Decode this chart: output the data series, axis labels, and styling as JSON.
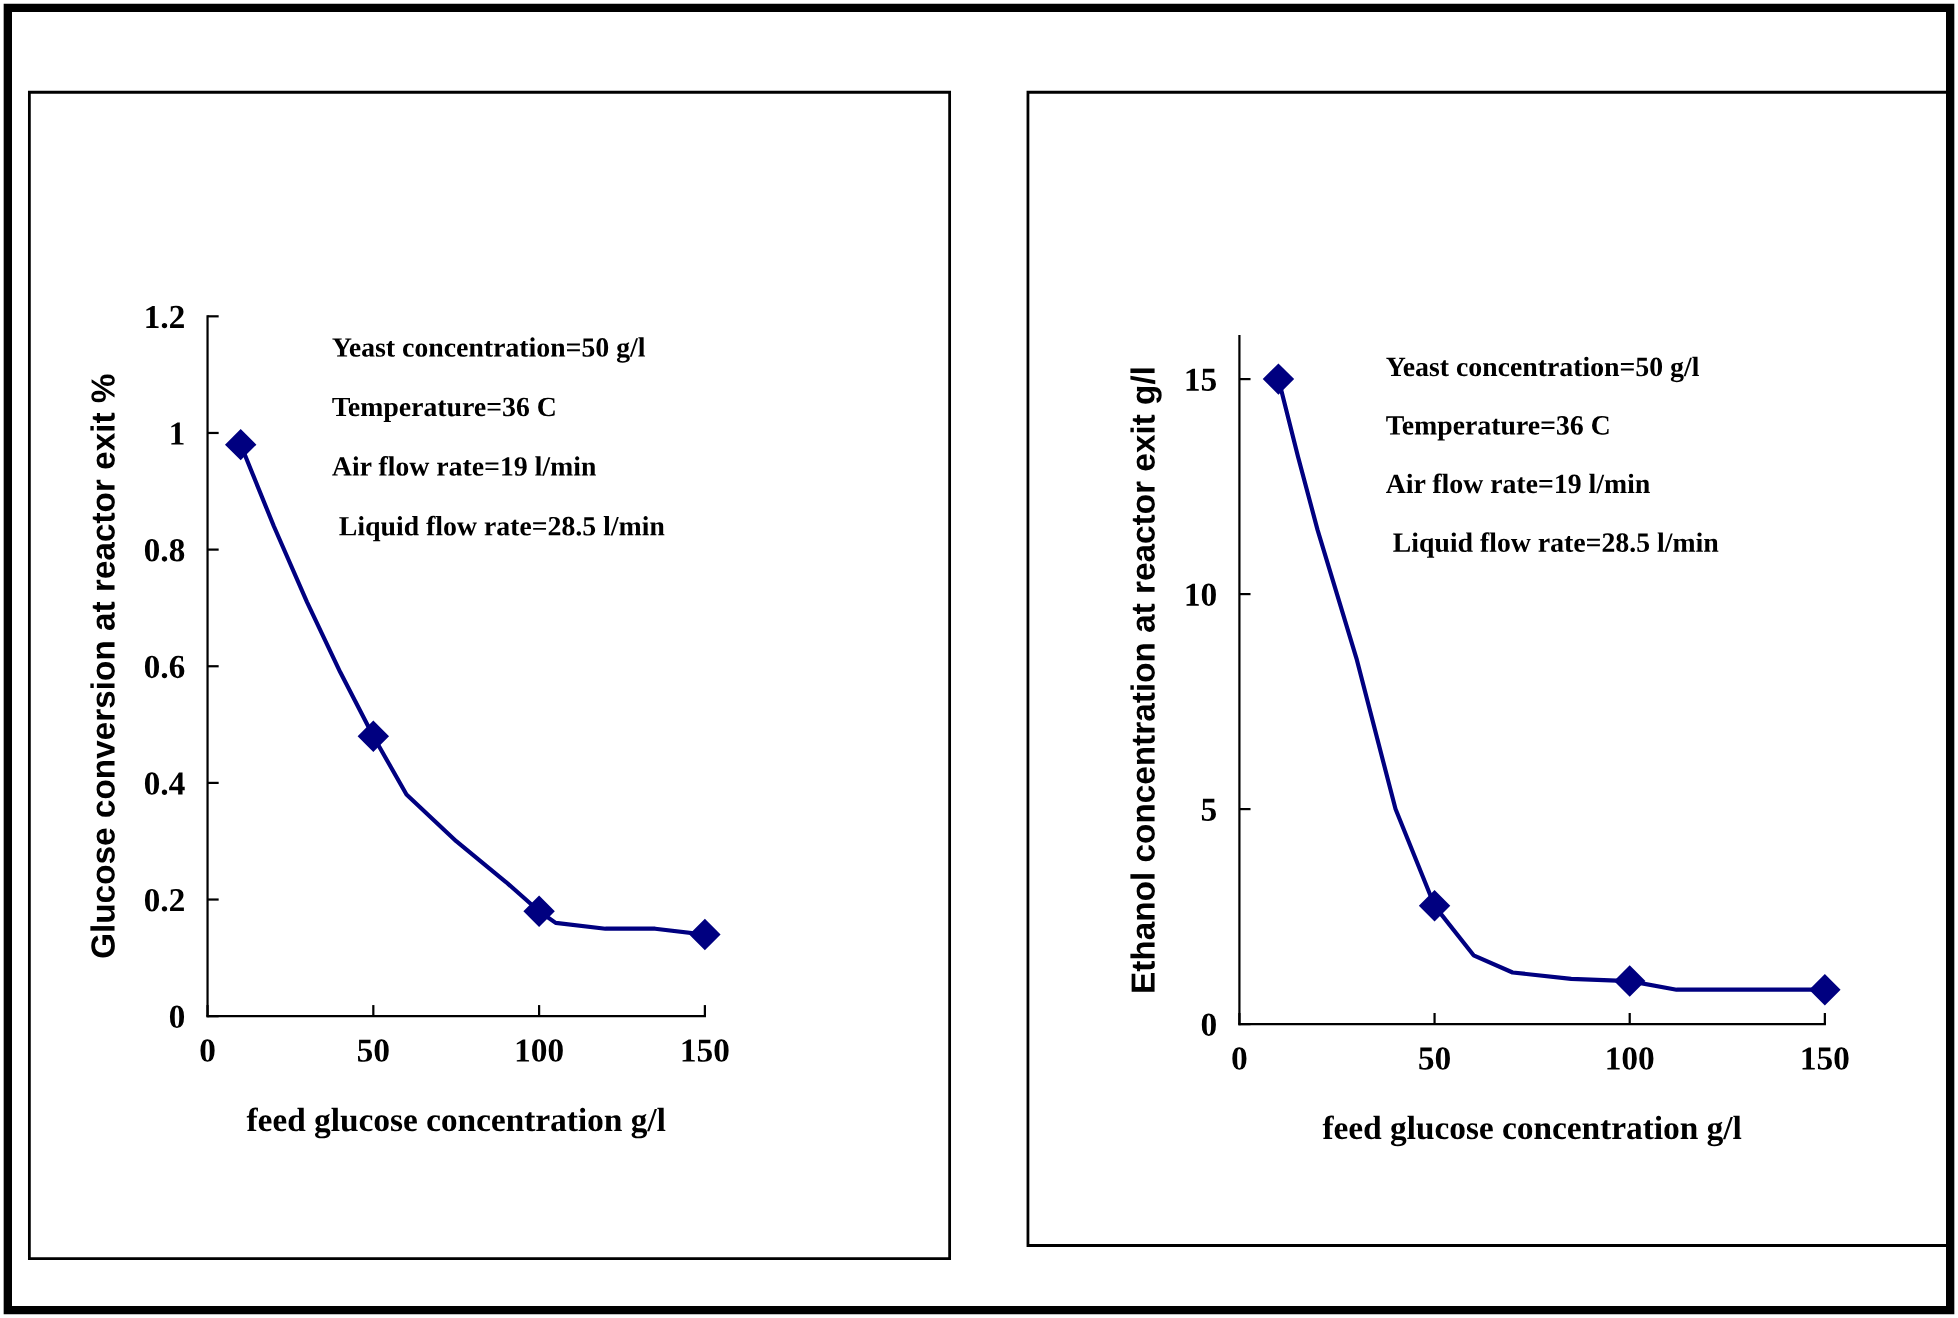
{
  "chart_data": [
    {
      "type": "line",
      "xlabel": "feed glucose concentration g/l",
      "ylabel": "Glucose conversion at reactor exit %",
      "series": [
        {
          "color": "#000080",
          "marker": "none",
          "x": [
            10,
            20,
            30,
            40,
            50,
            60,
            75,
            90,
            100,
            105,
            120,
            135,
            150
          ],
          "values": [
            0.98,
            0.84,
            0.71,
            0.59,
            0.48,
            0.38,
            0.3,
            0.23,
            0.18,
            0.16,
            0.15,
            0.15,
            0.14
          ]
        },
        {
          "type": "scatter",
          "color": "#000080",
          "marker": "diamond",
          "x": [
            10,
            50,
            100,
            150
          ],
          "values": [
            0.98,
            0.48,
            0.18,
            0.14
          ]
        }
      ],
      "xlim": [
        0,
        150
      ],
      "ylim": [
        0,
        1.2
      ],
      "xticks": [
        0,
        50,
        100,
        150
      ],
      "yticks": [
        0,
        0.2,
        0.4,
        0.6,
        0.8,
        1,
        1.2
      ],
      "line_style": "solid",
      "annotations": [
        "Yeast concentration=50 g/l",
        "Temperature=36 C",
        "Air flow rate=19 l/min",
        " Liquid flow rate=28.5 l/min"
      ]
    },
    {
      "type": "line",
      "xlabel": "feed glucose concentration g/l",
      "ylabel": "Ethanol concentration at reactor exit g/l",
      "series": [
        {
          "color": "#000080",
          "marker": "none",
          "x": [
            10,
            15,
            20,
            25,
            30,
            40,
            50,
            60,
            70,
            85,
            100,
            112,
            150
          ],
          "values": [
            15,
            13.2,
            11.5,
            10,
            8.5,
            5,
            2.75,
            1.6,
            1.2,
            1.05,
            1.0,
            0.8,
            0.8
          ]
        },
        {
          "type": "scatter",
          "color": "#000080",
          "marker": "diamond",
          "x": [
            10,
            50,
            100,
            150
          ],
          "values": [
            15,
            2.75,
            1.0,
            0.8
          ]
        }
      ],
      "xlim": [
        0,
        150
      ],
      "ylim": [
        0,
        16
      ],
      "xticks": [
        0,
        50,
        100,
        150
      ],
      "yticks": [
        0,
        5,
        10,
        15
      ],
      "line_style": "solid",
      "annotations": [
        "Yeast concentration=50 g/l",
        "Temperature=36 C",
        "Air flow rate=19 l/min",
        " Liquid flow rate=28.5 l/min"
      ]
    }
  ]
}
